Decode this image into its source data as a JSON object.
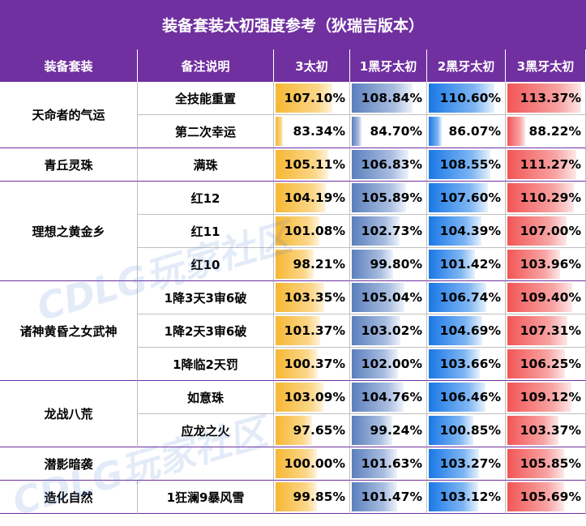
{
  "title": "装备套装太初强度参考（狄瑞吉版本）",
  "headers": [
    "装备套装",
    "备注说明",
    "3太初",
    "1黑牙太初",
    "2黑牙太初",
    "3黑牙太初"
  ],
  "groups": [
    {
      "name": "天命者的气运",
      "rows": [
        {
          "note": "全技能重置",
          "values": [
            "107.10%",
            "108.84%",
            "110.60%",
            "113.37%"
          ]
        },
        {
          "note": "第二次幸运",
          "values": [
            "83.34%",
            "84.70%",
            "86.07%",
            "88.22%"
          ]
        }
      ]
    },
    {
      "name": "青丘灵珠",
      "rows": [
        {
          "note": "满珠",
          "values": [
            "105.11%",
            "106.83%",
            "108.55%",
            "111.27%"
          ]
        }
      ]
    },
    {
      "name": "理想之黄金乡",
      "rows": [
        {
          "note": "红12",
          "values": [
            "104.19%",
            "105.89%",
            "107.60%",
            "110.29%"
          ]
        },
        {
          "note": "红11",
          "values": [
            "101.08%",
            "102.73%",
            "104.39%",
            "107.00%"
          ]
        },
        {
          "note": "红10",
          "values": [
            "98.21%",
            "99.80%",
            "101.42%",
            "103.96%"
          ]
        }
      ]
    },
    {
      "name": "诸神黄昏之女武神",
      "rows": [
        {
          "note": "1降3天3审6破",
          "values": [
            "103.35%",
            "105.04%",
            "106.74%",
            "109.40%"
          ]
        },
        {
          "note": "1降2天3审6破",
          "values": [
            "101.37%",
            "103.02%",
            "104.69%",
            "107.31%"
          ]
        },
        {
          "note": "1降临2天罚",
          "values": [
            "100.37%",
            "102.00%",
            "103.66%",
            "106.25%"
          ]
        }
      ]
    },
    {
      "name": "龙战八荒",
      "rows": [
        {
          "note": "如意珠",
          "values": [
            "103.09%",
            "104.76%",
            "106.46%",
            "109.12%"
          ]
        },
        {
          "note": "应龙之火",
          "values": [
            "97.65%",
            "99.24%",
            "100.85%",
            "103.37%"
          ]
        }
      ]
    },
    {
      "name": "潜影暗袭",
      "rows": [
        {
          "note": "",
          "values": [
            "100.00%",
            "101.63%",
            "103.27%",
            "105.85%"
          ]
        }
      ]
    },
    {
      "name": "造化自然",
      "rows": [
        {
          "note": "1狂澜9暴风雪",
          "values": [
            "99.85%",
            "101.47%",
            "103.12%",
            "105.69%"
          ]
        }
      ]
    }
  ],
  "watermark": "CDLG玩家社区",
  "colors": {
    "header_bg": "#7030a0",
    "bar_3": "#f7b733",
    "bar_1h": "#5b7fbd",
    "bar_2h": "#1a78e6",
    "bar_3h": "#f25656"
  }
}
